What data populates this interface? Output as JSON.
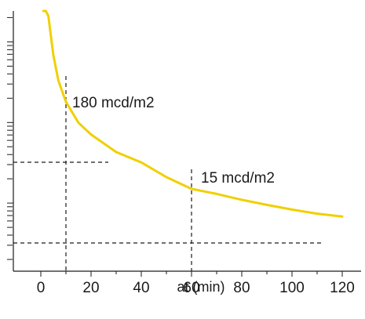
{
  "chart_data": {
    "type": "line",
    "xlabel": "at (min)",
    "ylabel": "",
    "xlim": [
      0,
      120
    ],
    "x_ticks": [
      "0",
      "20",
      "40",
      "60",
      "80",
      "100",
      "120"
    ],
    "y_scale": "log",
    "y_tick_labels_shown": false,
    "grid": false,
    "line_color": "#f0d000",
    "series": [
      {
        "x": [
          1,
          2,
          3,
          5,
          7,
          10,
          15,
          20,
          30,
          40,
          50,
          60,
          70,
          80,
          90,
          100,
          110,
          120
        ],
        "y": [
          55000,
          6600,
          2100,
          680,
          330,
          180,
          99,
          71,
          43,
          32,
          21,
          15,
          13,
          11,
          9.5,
          8.3,
          7.4,
          6.8
        ]
      }
    ],
    "annotations": [
      {
        "text": "180 mcd/m2",
        "x": 10,
        "y": 180
      },
      {
        "text": "15 mcd/m2",
        "x": 60,
        "y": 15
      }
    ]
  }
}
